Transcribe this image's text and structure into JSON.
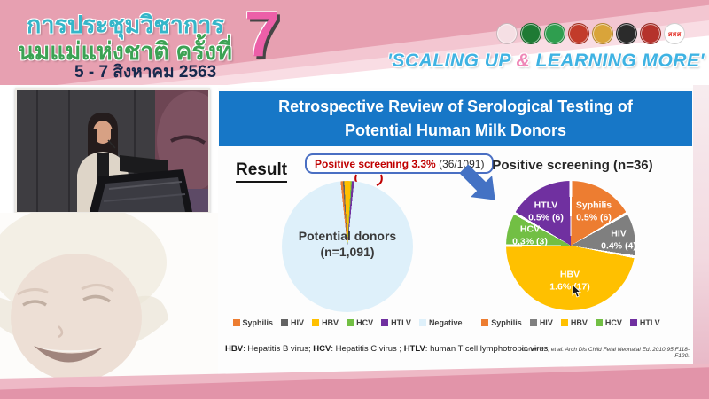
{
  "colors": {
    "title_bar_blue": "#1777c7",
    "arrow_blue": "#4472c4",
    "callout_red": "#c00000",
    "header_pink": "#e7a0b1",
    "tagline_blue": "#3fb3e3",
    "tagline_amp_pink": "#ef87b7",
    "edition_pink": "#ec5fa8"
  },
  "header": {
    "conference_line1": "การประชุมวิชาการ",
    "conference_line2": "นมแม่แห่งชาติ ครั้งที่",
    "date_line": "5 - 7 สิงหาคม 2563",
    "edition": "7",
    "tagline_prefix": "'SCALING UP ",
    "tagline_amp": "&",
    "tagline_suffix": " LEARNING MORE'",
    "logos": [
      {
        "name": "mother-child-foundation-logo",
        "color": "#f5dfe4"
      },
      {
        "name": "green-health-org-logo",
        "color": "#1e7a34"
      },
      {
        "name": "medical-council-logo",
        "color": "#2f9e4f"
      },
      {
        "name": "university-crest-logo",
        "color": "#c23b2a"
      },
      {
        "name": "royal-college-crest-logo",
        "color": "#d9a43a"
      },
      {
        "name": "pediatric-society-logo",
        "color": "#2b2b2b"
      },
      {
        "name": "red-emblem-logo",
        "color": "#b5322c"
      },
      {
        "name": "thai-health-sss-logo",
        "color": "#e4372e",
        "text": "สสส"
      }
    ]
  },
  "slide": {
    "title_line1": "Retrospective Review of Serological Testing of",
    "title_line2": "Potential Human Milk Donors",
    "result_label": "Result",
    "callout": {
      "highlight": "Positive screening 3.3%",
      "detail": " (36/1091)"
    },
    "footnote": {
      "abbr1": "HBV",
      "def1": ": Hepatitis B virus; ",
      "abbr2": "HCV",
      "def2": ": Hepatitis C virus ; ",
      "abbr3": "HTLV",
      "def3": ": human T cell lymphotropic virus"
    },
    "citation": "Cohen RS, et al. Arch Dis Child Fetal Neonatal Ed. 2010;95:F118-F120."
  },
  "chart_data": [
    {
      "type": "pie",
      "title": "Potential donors (n=1,091)",
      "center_line1": "Potential donors",
      "center_line2": "(n=1,091)",
      "labels": [
        "Syphilis",
        "HIV",
        "HBV",
        "HCV",
        "HTLV",
        "Negative"
      ],
      "values": [
        6,
        4,
        17,
        3,
        6,
        1055
      ],
      "colors": [
        "#ed7d31",
        "#636363",
        "#ffc000",
        "#72bf44",
        "#7030a0",
        "#def0fa"
      ],
      "start_angle": -6,
      "legend_position": "bottom",
      "annotation": "Positive screening 3.3% (36/1091)"
    },
    {
      "type": "pie",
      "title": "Positive screening (n=36)",
      "labels": [
        "Syphilis",
        "HIV",
        "HBV",
        "HCV",
        "HTLV"
      ],
      "values": [
        6,
        4,
        17,
        3,
        6
      ],
      "percent_labels": [
        "0.5% (6)",
        "0.4% (4)",
        "1.6% (17)",
        "0.3% (3)",
        "0.5% (6)"
      ],
      "colors": [
        "#ed7d31",
        "#7f7f7f",
        "#ffc000",
        "#72bf44",
        "#7030a0"
      ],
      "start_angle": 0,
      "legend_position": "bottom"
    }
  ]
}
